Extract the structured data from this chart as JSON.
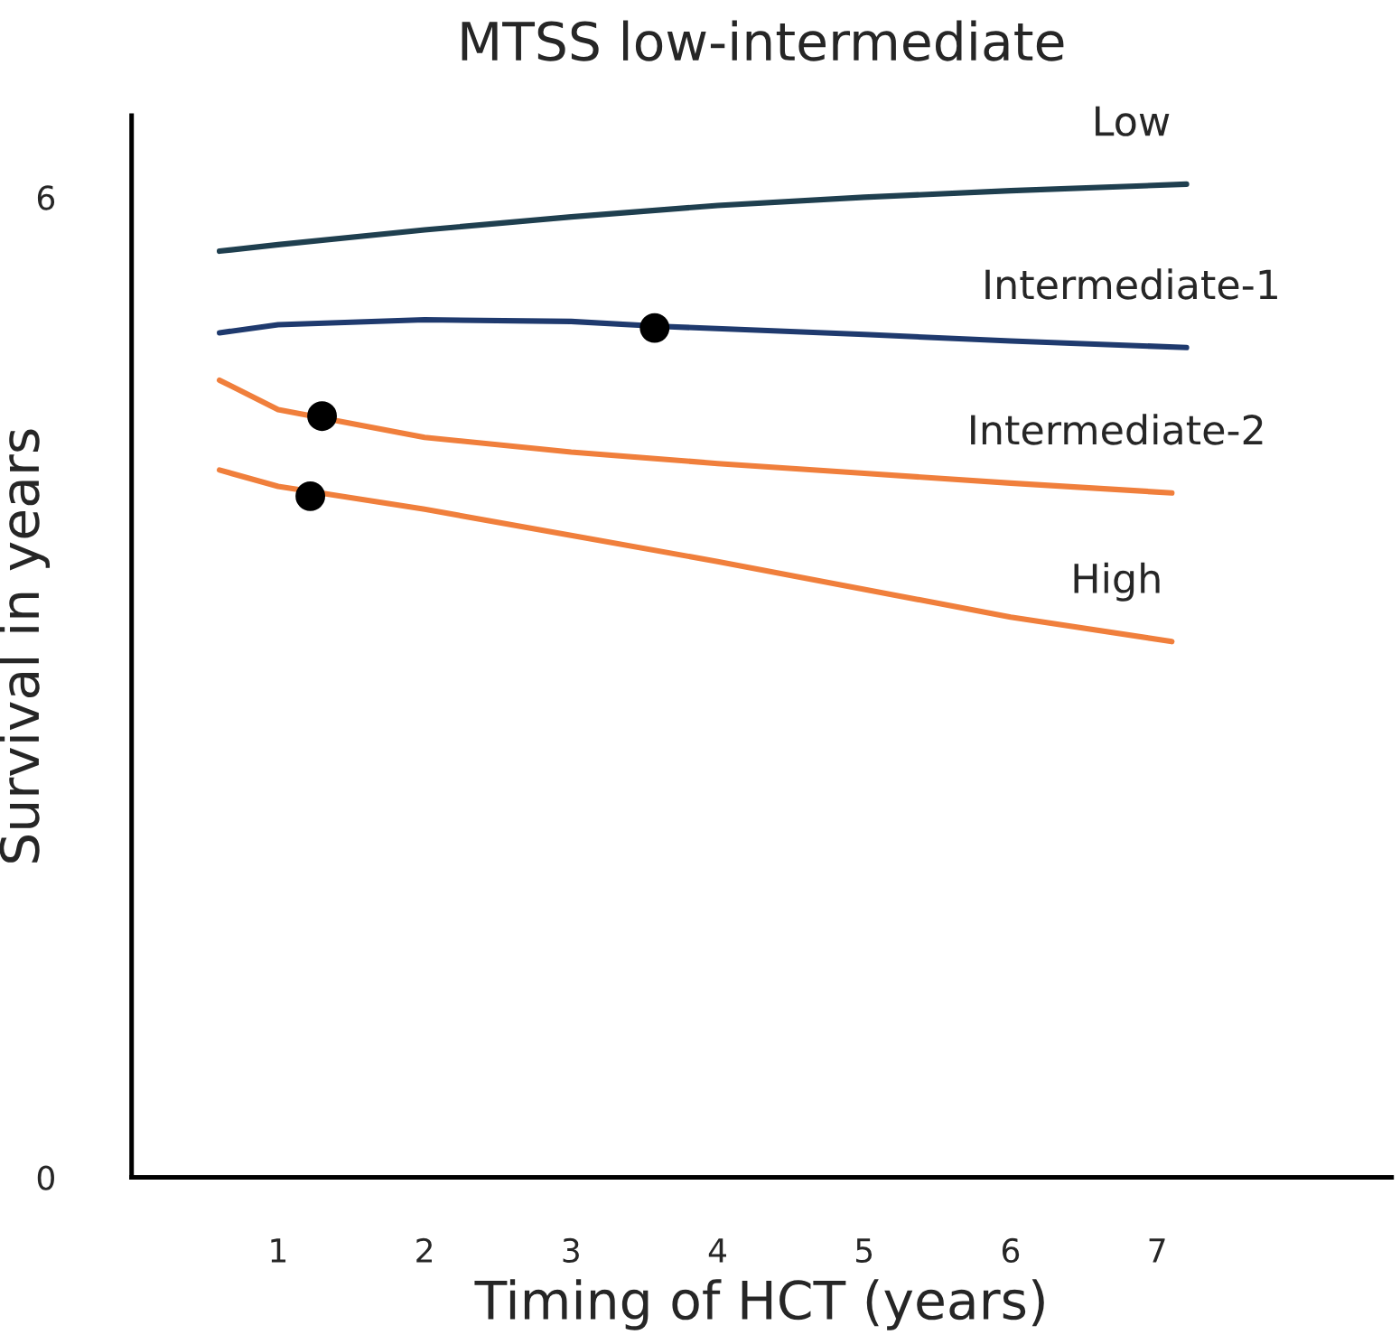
{
  "chart_data": {
    "type": "line",
    "title": "MTSS low-intermediate",
    "xlabel": "Timing of HCT (years)",
    "ylabel": "Survival in years",
    "xlim": [
      0,
      8.6
    ],
    "ylim": [
      0,
      6.5
    ],
    "xticks": [
      1,
      2,
      3,
      4,
      5,
      6,
      7
    ],
    "yticks": [
      {
        "value": 0,
        "label": "0"
      },
      6
    ],
    "grid": false,
    "legend": false,
    "marker": "none",
    "line_style": "solid",
    "series": [
      {
        "name": "Low",
        "color": "#1f3f4f",
        "x": [
          0.6,
          1,
          2,
          3,
          4,
          5,
          6,
          7.2
        ],
        "values": [
          5.67,
          5.71,
          5.8,
          5.88,
          5.95,
          6.0,
          6.04,
          6.08
        ]
      },
      {
        "name": "Intermediate-1",
        "color": "#1f3a6e",
        "x": [
          0.6,
          1,
          2,
          3,
          3.6,
          5,
          6,
          7.2
        ],
        "values": [
          5.17,
          5.22,
          5.25,
          5.24,
          5.21,
          5.16,
          5.12,
          5.08
        ]
      },
      {
        "name": "Intermediate-2",
        "color": "#f07f3c",
        "x": [
          0.6,
          1,
          2,
          3,
          4,
          5,
          6,
          7.1
        ],
        "values": [
          4.88,
          4.7,
          4.53,
          4.44,
          4.37,
          4.31,
          4.25,
          4.19
        ]
      },
      {
        "name": "High",
        "color": "#f07f3c",
        "x": [
          0.6,
          1,
          2,
          3,
          4,
          5,
          6,
          7.1
        ],
        "values": [
          4.33,
          4.23,
          4.09,
          3.93,
          3.77,
          3.6,
          3.43,
          3.28
        ]
      },
      {
        "type": "scatter",
        "marker": "circle",
        "color": "#000000",
        "x": [
          3.57,
          1.3,
          1.22
        ],
        "values": [
          5.2,
          4.66,
          4.17
        ]
      }
    ]
  }
}
